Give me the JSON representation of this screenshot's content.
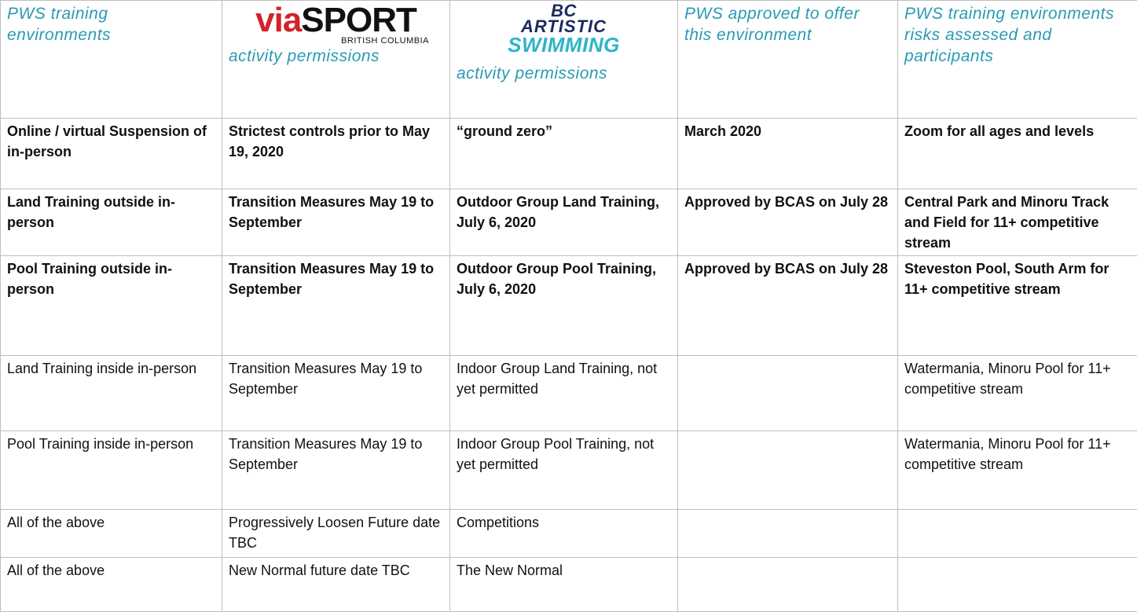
{
  "table": {
    "header": [
      {
        "text": "PWS training environments"
      },
      {
        "logo": [
          "via",
          "SPORT",
          "BRITISH COLUMBIA"
        ],
        "text": "activity permissions"
      },
      {
        "logo": [
          "BC",
          "ARTISTIC",
          "SWIMMING"
        ],
        "text": "activity permissions"
      },
      {
        "text": "PWS approved to offer this environment"
      },
      {
        "text": "PWS training environments risks assessed and participants"
      }
    ],
    "rows": [
      [
        "Online / virtual Suspension of in-person",
        "Strictest controls prior to May 19, 2020",
        "“ground zero”",
        "March 2020",
        "Zoom for all ages and levels"
      ],
      [
        "Land Training outside in-person",
        "Transition Measures May 19 to September",
        "Outdoor Group Land Training,  July 6, 2020",
        "Approved by BCAS on July 28",
        "Central Park and Minoru Track and Field for 11+ competitive stream"
      ],
      [
        "Pool Training outside in-person",
        "Transition Measures May 19 to September",
        "Outdoor Group Pool Training,  July 6, 2020",
        "Approved by BCAS on July 28",
        "Steveston Pool, South Arm for 11+ competitive stream"
      ],
      [
        "Land Training inside in-person",
        "Transition Measures May 19 to September",
        "Indoor Group Land Training, not yet permitted",
        "",
        "Watermania, Minoru Pool for 11+ competitive stream"
      ],
      [
        "Pool Training inside in-person",
        "Transition Measures May 19 to September",
        "Indoor Group Pool Training, not yet permitted",
        "",
        "Watermania, Minoru Pool for 11+ competitive stream"
      ],
      [
        "All of the above",
        "Progressively Loosen Future date TBC",
        "Competitions",
        "",
        ""
      ],
      [
        "All of the above",
        "New Normal future date TBC",
        "The New Normal",
        "",
        ""
      ]
    ]
  }
}
